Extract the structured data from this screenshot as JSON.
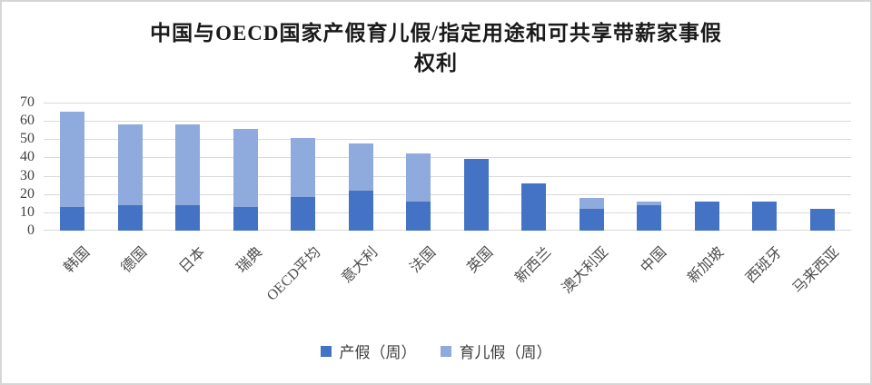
{
  "chart_data": {
    "type": "bar",
    "stacked": true,
    "title_lines": [
      "中国与OECD国家产假育儿假/指定用途和可共享带薪家事假",
      "权利"
    ],
    "categories": [
      "韩国",
      "德国",
      "日本",
      "瑞典",
      "OECD平均",
      "意大利",
      "法国",
      "英国",
      "新西兰",
      "澳大利亚",
      "中国",
      "新加坡",
      "西班牙",
      "马来西亚"
    ],
    "series": [
      {
        "name": "产假（周）",
        "color": "#4472C4",
        "values": [
          12.9,
          14,
          14,
          12.9,
          18.5,
          21.7,
          16,
          39,
          26,
          12,
          14,
          16,
          16,
          12
        ]
      },
      {
        "name": "育儿假（周）",
        "color": "#8FAADC",
        "values": [
          52,
          44,
          44,
          42.9,
          32.3,
          26,
          26,
          0,
          0,
          6,
          2,
          0,
          0,
          0
        ]
      }
    ],
    "ylim": [
      0,
      70
    ],
    "yticks": [
      0,
      10,
      20,
      30,
      40,
      50,
      60,
      70
    ],
    "xlabel": "",
    "ylabel": "",
    "grid": true,
    "legend_position": "bottom",
    "colors": {
      "gridline": "#d9d9d9",
      "tick_text": "#404040",
      "frame_border": "#d6d6d6"
    }
  }
}
